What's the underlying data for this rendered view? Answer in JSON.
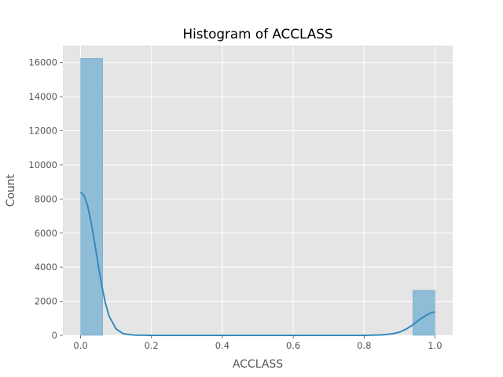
{
  "chart_data": {
    "type": "bar",
    "title": "Histogram of ACCLASS",
    "xlabel": "ACCLASS",
    "ylabel": "Count",
    "xlim": [
      -0.05,
      1.05
    ],
    "ylim": [
      0,
      17000
    ],
    "xticks": [
      0.0,
      0.2,
      0.4,
      0.6,
      0.8,
      1.0
    ],
    "xtick_labels": [
      "0.0",
      "0.2",
      "0.4",
      "0.6",
      "0.8",
      "1.0"
    ],
    "yticks": [
      0,
      2000,
      4000,
      6000,
      8000,
      10000,
      12000,
      14000,
      16000
    ],
    "ytick_labels": [
      "0",
      "2000",
      "4000",
      "6000",
      "8000",
      "10000",
      "12000",
      "14000",
      "16000"
    ],
    "bins": [
      {
        "x0": 0.0,
        "x1": 0.0625,
        "count": 16250
      },
      {
        "x0": 0.9375,
        "x1": 1.0,
        "count": 2650
      }
    ],
    "kde": {
      "x": [
        0.0,
        0.01,
        0.02,
        0.03,
        0.04,
        0.05,
        0.06,
        0.07,
        0.08,
        0.1,
        0.12,
        0.15,
        0.2,
        0.3,
        0.5,
        0.7,
        0.8,
        0.85,
        0.88,
        0.9,
        0.92,
        0.94,
        0.96,
        0.98,
        0.99,
        1.0
      ],
      "y": [
        8400,
        8200,
        7600,
        6600,
        5400,
        4100,
        2900,
        1900,
        1150,
        380,
        100,
        15,
        0,
        0,
        0,
        0,
        2,
        30,
        90,
        190,
        380,
        660,
        980,
        1240,
        1330,
        1370
      ]
    },
    "grid": true,
    "colors": {
      "background": "#e5e5e5",
      "bar_fill": "#8ab9d5",
      "bar_edge": "#5d9ec6",
      "kde_line": "#348abd",
      "grid": "#ffffff",
      "text": "#555555",
      "title": "#000000"
    }
  }
}
